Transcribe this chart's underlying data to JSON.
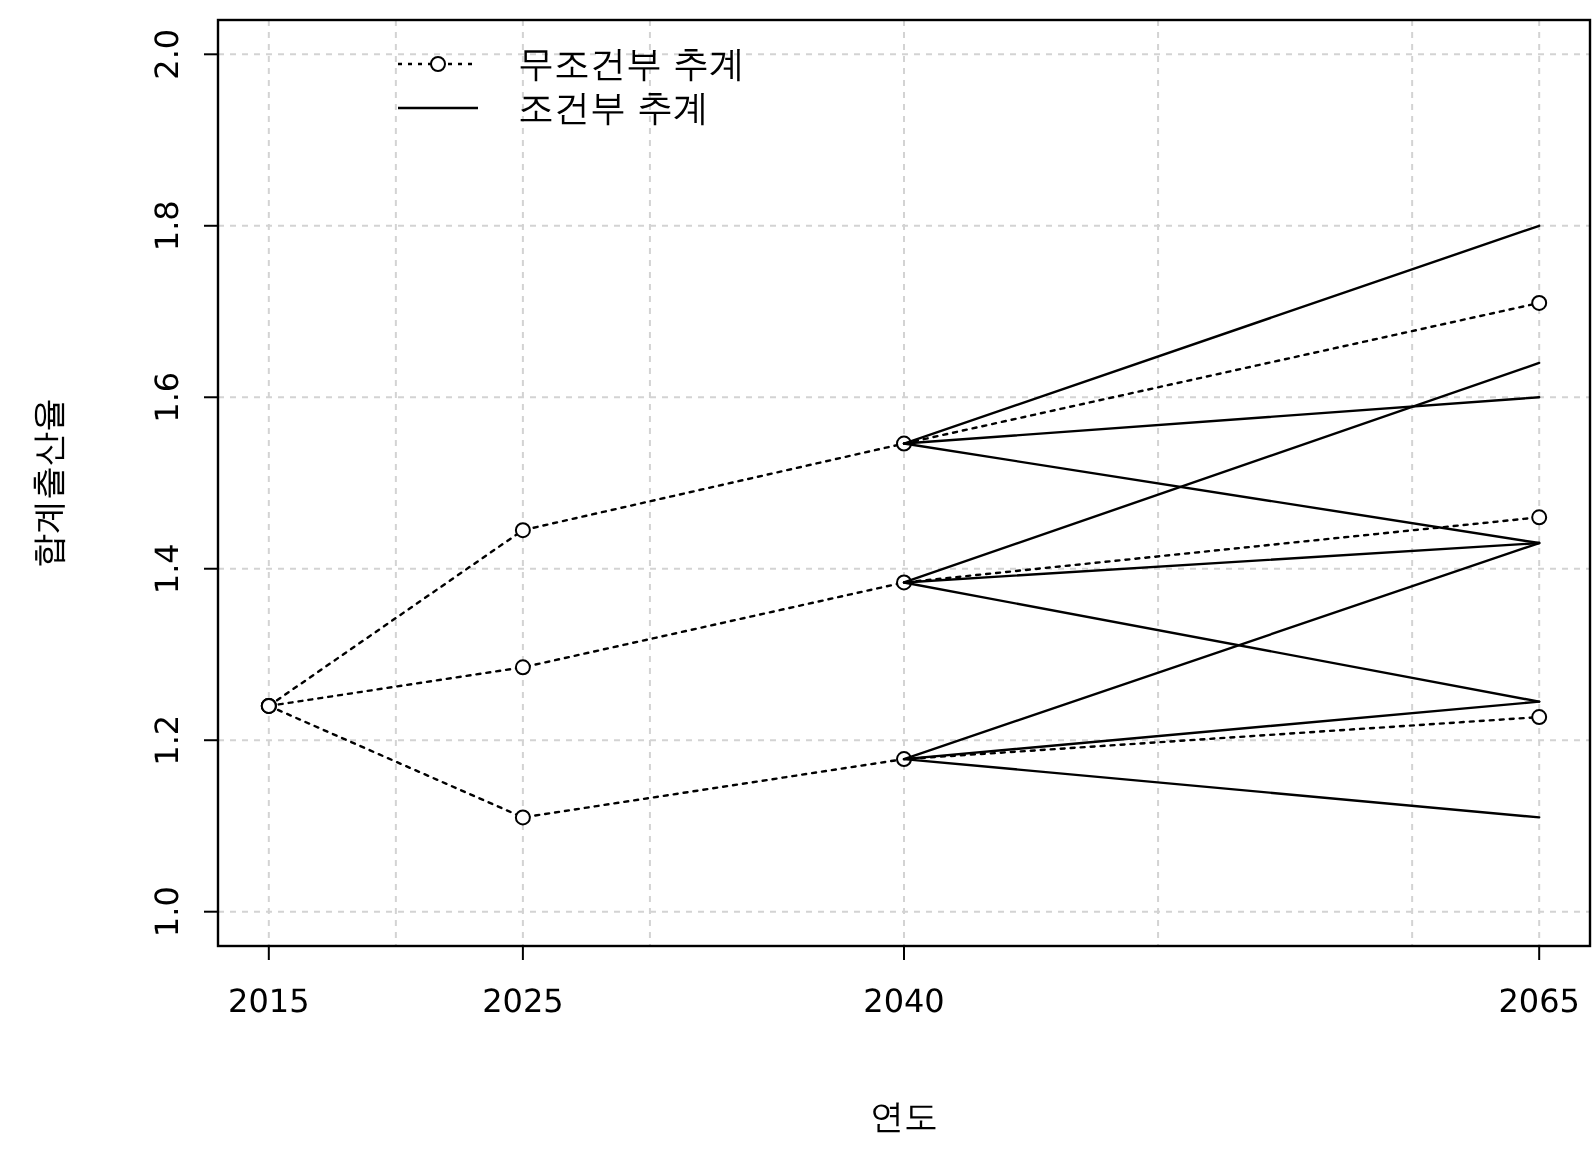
{
  "chart_data": {
    "type": "line",
    "xlabel": "연도",
    "ylabel": "합계출산율",
    "xlim": [
      2013,
      2067
    ],
    "ylim": [
      0.96,
      2.04
    ],
    "xticks": [
      2015,
      {
        "value": 2020,
        "label": null
      },
      2025,
      {
        "value": 2030,
        "label": null
      },
      2040,
      {
        "value": 2050,
        "label": null
      },
      {
        "value": 2060,
        "label": null
      },
      2065
    ],
    "yticks": [
      {
        "value": 1.0,
        "label": "1.0"
      },
      {
        "value": 1.2,
        "label": "1.2"
      },
      {
        "value": 1.4,
        "label": "1.4"
      },
      {
        "value": 1.6,
        "label": "1.6"
      },
      {
        "value": 1.8,
        "label": "1.8"
      },
      {
        "value": 2.0,
        "label": "2.0"
      }
    ],
    "grid": true,
    "legend": "top left",
    "series": [
      {
        "name": "무조건부 추계",
        "color": "#000000",
        "line_style": "dotted",
        "marker": "circle",
        "x": [
          2015,
          2025,
          2040,
          2065
        ],
        "values": [
          1.24,
          1.445,
          1.546,
          1.71
        ]
      },
      {
        "color": "#000000",
        "line_style": "dotted",
        "marker": "circle",
        "x": [
          2015,
          2025,
          2040,
          2065
        ],
        "values": [
          1.24,
          1.285,
          1.384,
          1.46
        ]
      },
      {
        "color": "#000000",
        "line_style": "dotted",
        "marker": "circle",
        "x": [
          2015,
          2025,
          2040,
          2065
        ],
        "values": [
          1.24,
          1.11,
          1.178,
          1.227
        ]
      },
      {
        "name": "조건부 추계",
        "color": "#000000",
        "line_style": "solid",
        "marker": "none",
        "x": [
          2040,
          2065
        ],
        "values": [
          1.546,
          1.8
        ]
      },
      {
        "color": "#000000",
        "line_style": "solid",
        "marker": "none",
        "x": [
          2040,
          2065
        ],
        "values": [
          1.546,
          1.6
        ]
      },
      {
        "color": "#000000",
        "line_style": "solid",
        "marker": "none",
        "x": [
          2040,
          2065
        ],
        "values": [
          1.546,
          1.43
        ]
      },
      {
        "color": "#000000",
        "line_style": "solid",
        "marker": "none",
        "x": [
          2040,
          2065
        ],
        "values": [
          1.384,
          1.64
        ]
      },
      {
        "color": "#000000",
        "line_style": "solid",
        "marker": "none",
        "x": [
          2040,
          2065
        ],
        "values": [
          1.384,
          1.43
        ]
      },
      {
        "color": "#000000",
        "line_style": "solid",
        "marker": "none",
        "x": [
          2040,
          2065
        ],
        "values": [
          1.384,
          1.245
        ]
      },
      {
        "color": "#000000",
        "line_style": "solid",
        "marker": "none",
        "x": [
          2040,
          2065
        ],
        "values": [
          1.178,
          1.43
        ]
      },
      {
        "color": "#000000",
        "line_style": "solid",
        "marker": "none",
        "x": [
          2040,
          2065
        ],
        "values": [
          1.178,
          1.245
        ]
      },
      {
        "color": "#000000",
        "line_style": "solid",
        "marker": "none",
        "x": [
          2040,
          2065
        ],
        "values": [
          1.178,
          1.11
        ]
      }
    ]
  }
}
